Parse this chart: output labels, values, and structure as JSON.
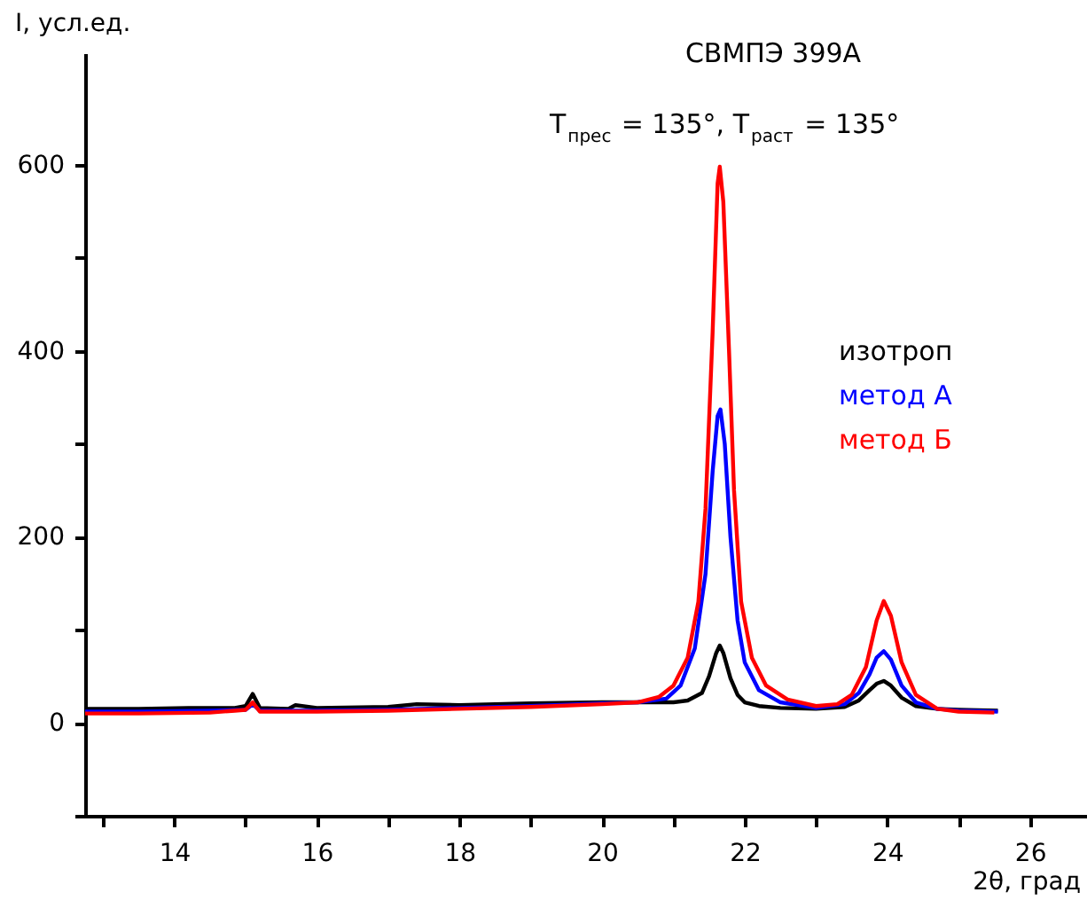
{
  "chart_data": {
    "type": "line",
    "title": "СВМПЭ 399А",
    "subtitle": "T$_{прес}$ = 135°, T$_{раст}$ = 135°",
    "xlabel": "2θ, град",
    "ylabel": "I, усл.ед.",
    "xlim": [
      12.75,
      26.8
    ],
    "ylim": [
      -100,
      720
    ],
    "xticks": [
      {
        "value": 13,
        "label": null
      },
      14,
      {
        "value": 15,
        "label": null
      },
      16,
      {
        "value": 17,
        "label": null
      },
      18,
      {
        "value": 19,
        "label": null
      },
      20,
      {
        "value": 21,
        "label": null
      },
      22,
      {
        "value": 23,
        "label": null
      },
      24,
      {
        "value": 25,
        "label": null
      },
      26
    ],
    "yticks": [
      {
        "value": -100,
        "label": null
      },
      0,
      {
        "value": 100,
        "label": null
      },
      200,
      {
        "value": 300,
        "label": null
      },
      400,
      {
        "value": 500,
        "label": null
      },
      600
    ],
    "grid": false,
    "legend": "right",
    "marker": "none",
    "line_style": "solid",
    "series": [
      {
        "name": "изотроп",
        "color": "#000000",
        "x": [
          12.75,
          13.5,
          14.2,
          14.85,
          15.0,
          15.1,
          15.2,
          15.6,
          15.7,
          16.0,
          17.0,
          17.4,
          18.0,
          19.0,
          20.0,
          20.5,
          21.0,
          21.2,
          21.4,
          21.5,
          21.6,
          21.65,
          21.7,
          21.8,
          21.9,
          22.0,
          22.2,
          22.5,
          23.0,
          23.4,
          23.6,
          23.75,
          23.85,
          23.95,
          24.05,
          24.2,
          24.4,
          24.7,
          25.0,
          25.55
        ],
        "values": [
          15,
          15,
          16,
          16,
          18,
          31,
          16,
          15,
          19,
          16,
          17,
          20,
          19,
          21,
          22,
          22,
          22,
          24,
          32,
          50,
          75,
          83,
          75,
          48,
          30,
          22,
          18,
          16,
          15,
          17,
          24,
          35,
          42,
          45,
          40,
          27,
          18,
          15,
          14,
          13
        ]
      },
      {
        "name": "метод А",
        "color": "#0000ff",
        "x": [
          12.75,
          13.5,
          14.5,
          15.0,
          15.1,
          15.2,
          16.0,
          17.0,
          18.0,
          19.0,
          20.0,
          20.5,
          20.9,
          21.1,
          21.3,
          21.45,
          21.55,
          21.62,
          21.66,
          21.72,
          21.8,
          21.9,
          22.0,
          22.2,
          22.5,
          23.0,
          23.4,
          23.6,
          23.75,
          23.85,
          23.95,
          24.05,
          24.2,
          24.4,
          24.7,
          25.0,
          25.55
        ],
        "values": [
          12,
          12,
          13,
          14,
          20,
          13,
          13,
          14,
          16,
          18,
          21,
          22,
          26,
          40,
          80,
          160,
          270,
          330,
          337,
          300,
          200,
          110,
          65,
          35,
          22,
          16,
          20,
          32,
          52,
          70,
          77,
          68,
          40,
          22,
          15,
          13,
          12
        ]
      },
      {
        "name": "метод Б",
        "color": "#ff0000",
        "x": [
          12.75,
          13.5,
          14.5,
          14.85,
          15.0,
          15.1,
          15.2,
          15.6,
          16.0,
          17.0,
          18.0,
          19.0,
          20.0,
          20.5,
          20.8,
          21.0,
          21.2,
          21.35,
          21.45,
          21.55,
          21.62,
          21.65,
          21.7,
          21.78,
          21.85,
          21.95,
          22.1,
          22.3,
          22.6,
          23.0,
          23.3,
          23.5,
          23.7,
          23.85,
          23.95,
          24.05,
          24.2,
          24.4,
          24.7,
          25.0,
          25.5
        ],
        "values": [
          10,
          10,
          11,
          13,
          14,
          22,
          12,
          12,
          12,
          13,
          15,
          17,
          20,
          22,
          28,
          40,
          70,
          130,
          230,
          420,
          580,
          598,
          560,
          400,
          250,
          130,
          70,
          40,
          25,
          18,
          20,
          30,
          60,
          110,
          131,
          115,
          65,
          30,
          15,
          12,
          11
        ]
      }
    ]
  }
}
